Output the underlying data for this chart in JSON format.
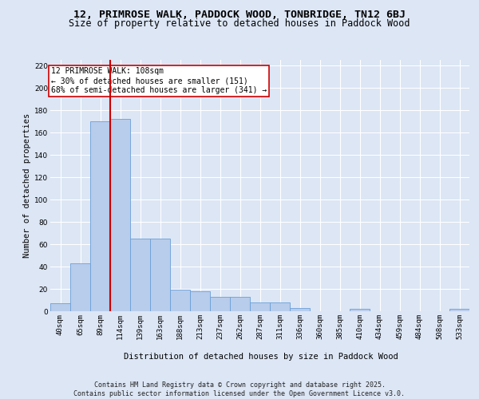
{
  "title1": "12, PRIMROSE WALK, PADDOCK WOOD, TONBRIDGE, TN12 6BJ",
  "title2": "Size of property relative to detached houses in Paddock Wood",
  "xlabel": "Distribution of detached houses by size in Paddock Wood",
  "ylabel": "Number of detached properties",
  "categories": [
    "40sqm",
    "65sqm",
    "89sqm",
    "114sqm",
    "139sqm",
    "163sqm",
    "188sqm",
    "213sqm",
    "237sqm",
    "262sqm",
    "287sqm",
    "311sqm",
    "336sqm",
    "360sqm",
    "385sqm",
    "410sqm",
    "434sqm",
    "459sqm",
    "484sqm",
    "508sqm",
    "533sqm"
  ],
  "values": [
    7,
    43,
    170,
    172,
    65,
    65,
    19,
    18,
    13,
    13,
    8,
    8,
    3,
    0,
    0,
    2,
    0,
    0,
    0,
    0,
    2
  ],
  "bar_color": "#b8cceb",
  "bar_edge_color": "#6a9fd8",
  "background_color": "#dce6f5",
  "grid_color": "#ffffff",
  "vline_x_index": 3,
  "vline_color": "#cc0000",
  "annotation_text": "12 PRIMROSE WALK: 108sqm\n← 30% of detached houses are smaller (151)\n68% of semi-detached houses are larger (341) →",
  "annotation_box_color": "#ffffff",
  "annotation_box_edge": "#cc0000",
  "ylim": [
    0,
    225
  ],
  "yticks": [
    0,
    20,
    40,
    60,
    80,
    100,
    120,
    140,
    160,
    180,
    200,
    220
  ],
  "footer": "Contains HM Land Registry data © Crown copyright and database right 2025.\nContains public sector information licensed under the Open Government Licence v3.0.",
  "title_fontsize": 9.5,
  "subtitle_fontsize": 8.5,
  "axis_label_fontsize": 7.5,
  "tick_fontsize": 6.5,
  "footer_fontsize": 6.0,
  "ann_fontsize": 7.0
}
